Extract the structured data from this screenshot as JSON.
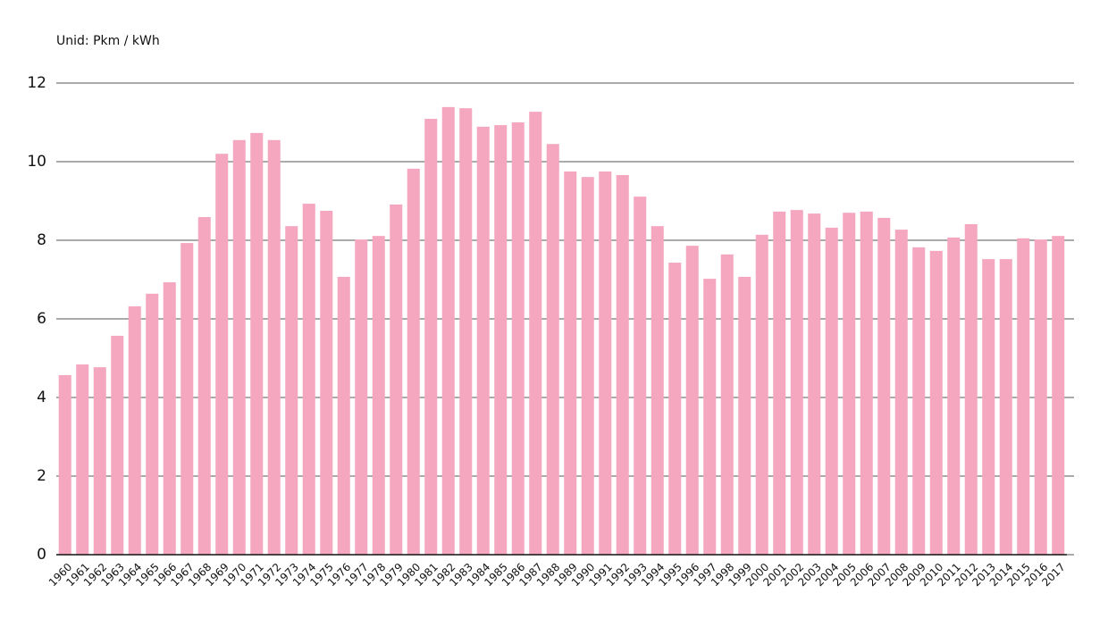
{
  "chart_data": {
    "type": "bar",
    "subtitle": "Unid: Pkm / kWh",
    "categories": [
      "1960",
      "1961",
      "1962",
      "1963",
      "1964",
      "1965",
      "1966",
      "1967",
      "1968",
      "1969",
      "1970",
      "1971",
      "1972",
      "1973",
      "1974",
      "1975",
      "1976",
      "1977",
      "1978",
      "1979",
      "1980",
      "1981",
      "1982",
      "1983",
      "1984",
      "1985",
      "1986",
      "1987",
      "1988",
      "1989",
      "1990",
      "1991",
      "1992",
      "1993",
      "1994",
      "1995",
      "1996",
      "1997",
      "1998",
      "1999",
      "2000",
      "2001",
      "2002",
      "2003",
      "2004",
      "2005",
      "2006",
      "2007",
      "2008",
      "2009",
      "2010",
      "2011",
      "2012",
      "2013",
      "2014",
      "2015",
      "2016",
      "2017"
    ],
    "values": [
      4.57,
      4.84,
      4.77,
      5.57,
      6.32,
      6.64,
      6.93,
      7.93,
      8.59,
      10.2,
      10.55,
      10.73,
      10.55,
      8.36,
      8.93,
      8.75,
      7.07,
      8.02,
      8.11,
      8.91,
      9.82,
      11.09,
      11.39,
      11.36,
      10.89,
      10.93,
      11.0,
      11.27,
      10.45,
      9.75,
      9.61,
      9.75,
      9.66,
      9.11,
      8.36,
      7.43,
      7.86,
      7.02,
      7.64,
      7.07,
      8.14,
      8.73,
      8.77,
      8.68,
      8.32,
      8.7,
      8.73,
      8.57,
      8.27,
      7.82,
      7.73,
      8.07,
      8.41,
      7.52,
      7.52,
      8.05,
      8.02,
      8.11
    ],
    "color": "#f4a7be",
    "ylim": [
      0,
      12
    ],
    "yticks": [
      0,
      2,
      4,
      6,
      8,
      10,
      12
    ],
    "grid": true
  }
}
